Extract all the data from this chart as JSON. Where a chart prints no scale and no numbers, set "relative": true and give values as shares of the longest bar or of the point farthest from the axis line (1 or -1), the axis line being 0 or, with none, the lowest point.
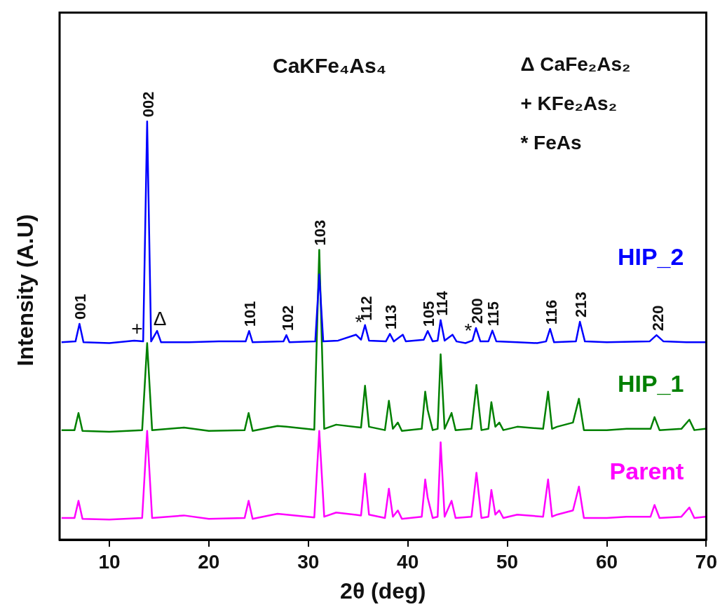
{
  "chart_data": {
    "type": "line",
    "title": "CaKFe₄As₄",
    "xlabel": "2θ (deg)",
    "ylabel": "Intensity (A.U)",
    "relative": true,
    "grid": false,
    "legend": false,
    "marker": "none",
    "line_style": "solid",
    "xlim": [
      5,
      70
    ],
    "xticks": [
      10,
      20,
      30,
      40,
      50,
      60,
      70
    ],
    "x": [
      5.2,
      6.5,
      6.9,
      7.3,
      10,
      13.3,
      13.8,
      14.3,
      17.5,
      20,
      23.6,
      24.0,
      24.4,
      26.9,
      27.8,
      30.6,
      31.1,
      31.6,
      32.8,
      35.3,
      35.7,
      36.1,
      37.7,
      38.1,
      38.5,
      39.0,
      39.4,
      41.4,
      41.75,
      42.0,
      42.5,
      43.0,
      43.3,
      43.7,
      44.4,
      44.8,
      46.4,
      46.9,
      47.4,
      48.1,
      48.4,
      48.8,
      49.2,
      49.6,
      51,
      53.6,
      54.1,
      54.5,
      55,
      56.6,
      57.2,
      57.7,
      60,
      62,
      64.4,
      64.8,
      65.3,
      67.5,
      68.3,
      68.8,
      69.9
    ],
    "series": [
      {
        "name": "HIP_2",
        "color": "#0000ff",
        "x": [
          5.2,
          6.6,
          7.0,
          7.4,
          10,
          12.5,
          13.4,
          13.8,
          14.2,
          14.8,
          15.2,
          18,
          21,
          23.7,
          24.05,
          24.4,
          27.5,
          27.8,
          28.1,
          30.7,
          31.1,
          31.5,
          33,
          34.8,
          35.3,
          35.7,
          36.1,
          37.8,
          38.2,
          38.6,
          39.5,
          39.8,
          41.6,
          42.0,
          42.5,
          43.0,
          43.3,
          43.7,
          44.5,
          44.9,
          45.8,
          46.5,
          46.85,
          47.3,
          48.1,
          48.5,
          48.9,
          51,
          53,
          53.9,
          54.3,
          54.7,
          56.9,
          57.3,
          57.8,
          60,
          64.3,
          65.0,
          65.7,
          68,
          69.9
        ],
        "values": [
          0.472,
          0.474,
          0.516,
          0.472,
          0.47,
          0.476,
          0.474,
          1.0,
          0.474,
          0.499,
          0.472,
          0.472,
          0.474,
          0.474,
          0.499,
          0.472,
          0.474,
          0.489,
          0.472,
          0.474,
          0.634,
          0.474,
          0.476,
          0.49,
          0.478,
          0.513,
          0.476,
          0.474,
          0.492,
          0.474,
          0.49,
          0.474,
          0.478,
          0.499,
          0.474,
          0.476,
          0.525,
          0.476,
          0.49,
          0.474,
          0.47,
          0.476,
          0.506,
          0.474,
          0.474,
          0.5,
          0.474,
          0.472,
          0.47,
          0.474,
          0.504,
          0.472,
          0.474,
          0.521,
          0.474,
          0.472,
          0.474,
          0.489,
          0.474,
          0.472,
          0.472
        ]
      },
      {
        "name": "HIP_1",
        "color": "#008000",
        "values": [
          0.262,
          0.262,
          0.303,
          0.26,
          0.258,
          0.262,
          0.47,
          0.262,
          0.268,
          0.26,
          0.262,
          0.303,
          0.26,
          0.272,
          0.27,
          0.263,
          0.693,
          0.265,
          0.275,
          0.268,
          0.368,
          0.27,
          0.262,
          0.332,
          0.265,
          0.28,
          0.26,
          0.265,
          0.354,
          0.31,
          0.262,
          0.265,
          0.443,
          0.265,
          0.303,
          0.262,
          0.265,
          0.37,
          0.262,
          0.265,
          0.329,
          0.27,
          0.28,
          0.262,
          0.27,
          0.265,
          0.354,
          0.265,
          0.27,
          0.28,
          0.337,
          0.262,
          0.262,
          0.265,
          0.265,
          0.293,
          0.262,
          0.265,
          0.287,
          0.262,
          0.265
        ]
      },
      {
        "name": "Parent",
        "color": "#ff00ff",
        "values": [
          0.052,
          0.052,
          0.093,
          0.05,
          0.048,
          0.052,
          0.26,
          0.052,
          0.058,
          0.05,
          0.052,
          0.093,
          0.05,
          0.062,
          0.06,
          0.053,
          0.26,
          0.055,
          0.065,
          0.058,
          0.158,
          0.06,
          0.052,
          0.122,
          0.055,
          0.07,
          0.05,
          0.055,
          0.144,
          0.1,
          0.052,
          0.055,
          0.233,
          0.055,
          0.093,
          0.052,
          0.055,
          0.16,
          0.052,
          0.055,
          0.119,
          0.06,
          0.07,
          0.052,
          0.06,
          0.055,
          0.144,
          0.055,
          0.06,
          0.07,
          0.127,
          0.052,
          0.052,
          0.055,
          0.055,
          0.083,
          0.052,
          0.055,
          0.077,
          0.052,
          0.055
        ]
      }
    ],
    "annotations": [
      "Δ CaFe₂As₂",
      "+ KFe₂As₂",
      "* FeAs",
      {
        "text": "001",
        "x": 7.0,
        "y": 0.516
      },
      {
        "text": "002",
        "x": 13.8,
        "y": 1.0
      },
      {
        "text": "101",
        "x": 24.05,
        "y": 0.499
      },
      {
        "text": "102",
        "x": 27.8,
        "y": 0.489
      },
      {
        "text": "103",
        "x": 31.1,
        "y": 0.693
      },
      {
        "text": "112",
        "x": 35.7,
        "y": 0.513
      },
      {
        "text": "113",
        "x": 38.2,
        "y": 0.492
      },
      {
        "text": "105",
        "x": 42.0,
        "y": 0.499
      },
      {
        "text": "114",
        "x": 43.3,
        "y": 0.525
      },
      {
        "text": "200",
        "x": 46.85,
        "y": 0.506
      },
      {
        "text": "115",
        "x": 48.5,
        "y": 0.5
      },
      {
        "text": "116",
        "x": 54.3,
        "y": 0.504
      },
      {
        "text": "213",
        "x": 57.3,
        "y": 0.521
      },
      {
        "text": "220",
        "x": 65.0,
        "y": 0.489
      },
      {
        "text": "+",
        "x": 12.5,
        "y": 0.476
      },
      {
        "text": "Δ",
        "x": 14.8,
        "y": 0.499
      },
      {
        "text": "*",
        "x": 34.8,
        "y": 0.49
      },
      {
        "text": "*",
        "x": 45.8,
        "y": 0.47
      }
    ]
  }
}
